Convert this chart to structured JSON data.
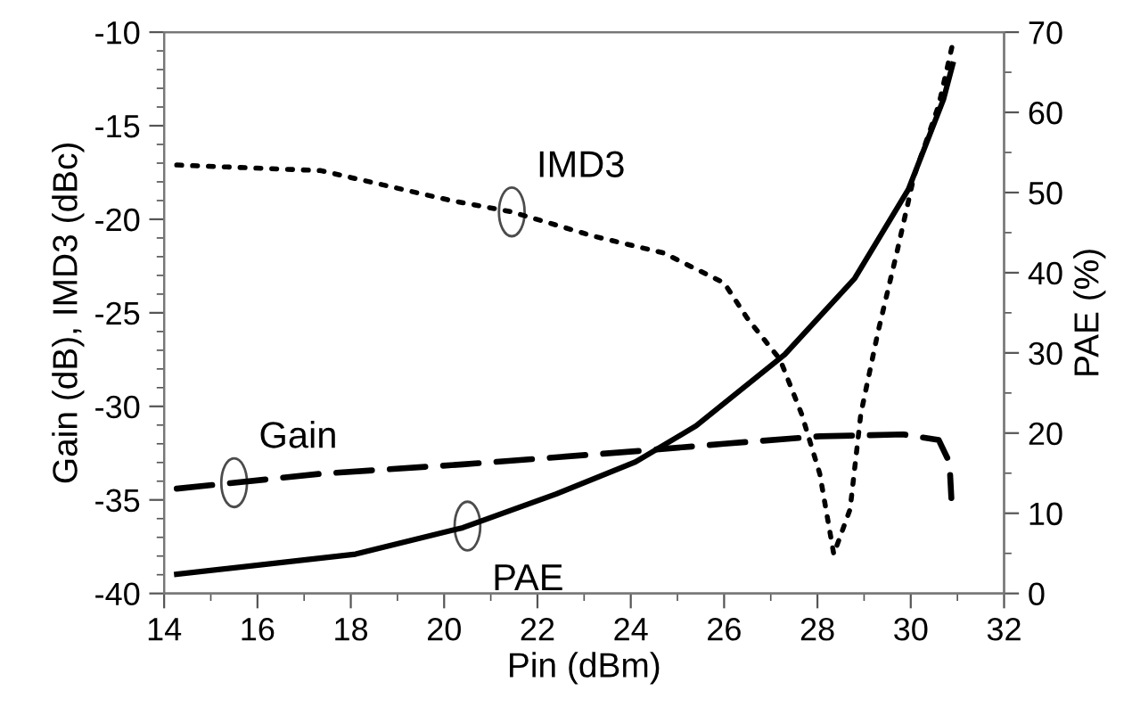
{
  "chart_data": {
    "type": "line",
    "xlabel": "Pin (dBm)",
    "ylabel": "Gain (dB), IMD3 (dBc)",
    "y2label": "PAE (%)",
    "xlim": [
      14,
      32
    ],
    "xticks": [
      14,
      16,
      18,
      20,
      22,
      24,
      26,
      28,
      30,
      32
    ],
    "ylim": [
      -40,
      -10
    ],
    "yticks": [
      -40,
      -35,
      -30,
      -25,
      -20,
      -15,
      -10
    ],
    "y2lim": [
      0,
      70
    ],
    "y2ticks": [
      0,
      10,
      20,
      30,
      40,
      50,
      60,
      70
    ],
    "grid": false,
    "series": [
      {
        "name": "IMD3",
        "color": "#000000",
        "line_style": "dotted",
        "x": [
          14.27,
          17.36,
          20.15,
          21.44,
          23.2,
          24.7,
          26.0,
          26.5,
          27.2,
          27.66,
          28.05,
          28.35,
          28.7,
          28.93,
          29.3,
          29.7,
          30.07,
          30.6,
          30.9
        ],
        "values": [
          -17.1,
          -17.4,
          -19.0,
          -19.6,
          -20.9,
          -21.8,
          -23.4,
          -25.3,
          -27.5,
          -30.4,
          -33.6,
          -37.9,
          -35.5,
          -30.4,
          -26.0,
          -21.8,
          -17.7,
          -13.9,
          -10.6
        ]
      },
      {
        "name": "Gain",
        "color": "#000000",
        "line_style": "dashed",
        "x": [
          14.27,
          17.36,
          20.4,
          24.1,
          26.0,
          28.05,
          29.84,
          30.6,
          30.83,
          30.87
        ],
        "values": [
          -34.4,
          -33.6,
          -33.1,
          -32.4,
          -32.0,
          -31.6,
          -31.5,
          -31.8,
          -33.0,
          -34.9
        ]
      },
      {
        "name": "PAE",
        "color": "#000000",
        "line_style": "solid",
        "axis": "y2",
        "x": [
          14.27,
          18.1,
          20.4,
          22.4,
          24.1,
          25.4,
          27.3,
          28.8,
          29.95,
          30.7,
          30.9
        ],
        "values": [
          2.4,
          4.9,
          8.2,
          12.4,
          16.4,
          20.9,
          29.8,
          39.3,
          50.4,
          61.6,
          66.0
        ]
      }
    ]
  }
}
